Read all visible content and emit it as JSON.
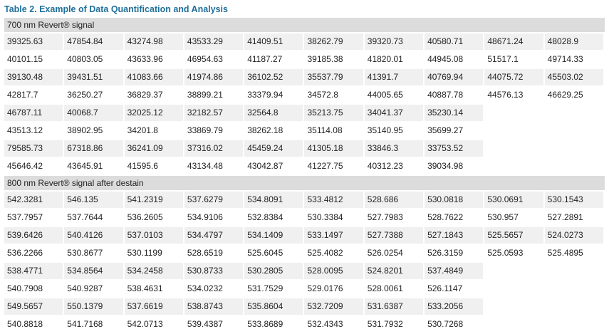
{
  "title": "Table 2.  Example of Data Quantification and Analysis",
  "sections": [
    {
      "header": "700 nm Revert® signal",
      "rows": [
        [
          "39325.63",
          "47854.84",
          "43274.98",
          "43533.29",
          "41409.51",
          "38262.79",
          "39320.73",
          "40580.71",
          "48671.24",
          "48028.9"
        ],
        [
          "40101.15",
          "40803.05",
          "43633.96",
          "46954.63",
          "41187.27",
          "39185.38",
          "41820.01",
          "44945.08",
          "51517.1",
          "49714.33"
        ],
        [
          "39130.48",
          "39431.51",
          "41083.66",
          "41974.86",
          "36102.52",
          "35537.79",
          "41391.7",
          "40769.94",
          "44075.72",
          "45503.02"
        ],
        [
          "42817.7",
          "36250.27",
          "36829.37",
          "38899.21",
          "33379.94",
          "34572.8",
          "44005.65",
          "40887.78",
          "44576.13",
          "46629.25"
        ],
        [
          "46787.11",
          "40068.7",
          "32025.12",
          "32182.57",
          "32564.8",
          "35213.75",
          "34041.37",
          "35230.14",
          "",
          ""
        ],
        [
          "43513.12",
          "38902.95",
          "34201.8",
          "33869.79",
          "38262.18",
          "35114.08",
          "35140.95",
          "35699.27",
          "",
          ""
        ],
        [
          "79585.73",
          "67318.86",
          "36241.09",
          "37316.02",
          "45459.24",
          "41305.18",
          "33846.3",
          "33753.52",
          "",
          ""
        ],
        [
          "45646.42",
          "43645.91",
          "41595.6",
          "43134.48",
          "43042.87",
          "41227.75",
          "40312.23",
          "39034.98",
          "",
          ""
        ]
      ]
    },
    {
      "header": "800 nm Revert® signal after destain",
      "rows": [
        [
          "542.3281",
          "546.135",
          "541.2319",
          "537.6279",
          "534.8091",
          "533.4812",
          "528.686",
          "530.0818",
          "530.0691",
          "530.1543"
        ],
        [
          "537.7957",
          "537.7644",
          "536.2605",
          "534.9106",
          "532.8384",
          "530.3384",
          "527.7983",
          "528.7622",
          "530.957",
          "527.2891"
        ],
        [
          "539.6426",
          "540.4126",
          "537.0103",
          "534.4797",
          "534.1409",
          "533.1497",
          "527.7388",
          "527.1843",
          "525.5657",
          "524.0273"
        ],
        [
          "536.2266",
          "530.8677",
          "530.1199",
          "528.6519",
          "525.6045",
          "525.4082",
          "526.0254",
          "526.3159",
          "525.0593",
          "525.4895"
        ],
        [
          "538.4771",
          "534.8564",
          "534.2458",
          "530.8733",
          "530.2805",
          "528.0095",
          "524.8201",
          "537.4849",
          "",
          ""
        ],
        [
          "540.7908",
          "540.9287",
          "538.4631",
          "534.0232",
          "531.7529",
          "529.0176",
          "528.0061",
          "526.1147",
          "",
          ""
        ],
        [
          "549.5657",
          "550.1379",
          "537.6619",
          "538.8743",
          "535.8604",
          "532.7209",
          "531.6387",
          "533.2056",
          "",
          ""
        ],
        [
          "540.8818",
          "541.7168",
          "542.0713",
          "539.4387",
          "533.8689",
          "532.4343",
          "531.7932",
          "530.7268",
          "",
          ""
        ]
      ]
    }
  ]
}
